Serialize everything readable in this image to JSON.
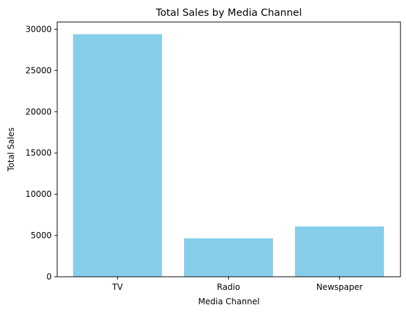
{
  "chart_data": {
    "type": "bar",
    "title": "Total Sales by Media Channel",
    "xlabel": "Media Channel",
    "ylabel": "Total Sales",
    "categories": [
      "TV",
      "Radio",
      "Newspaper"
    ],
    "values": [
      29400,
      4650,
      6100
    ],
    "ylim": [
      0,
      30870
    ],
    "yticks": [
      0,
      5000,
      10000,
      15000,
      20000,
      25000,
      30000
    ],
    "grid": false,
    "bar_color": "#87CEEB",
    "axis_color": "#000000"
  }
}
